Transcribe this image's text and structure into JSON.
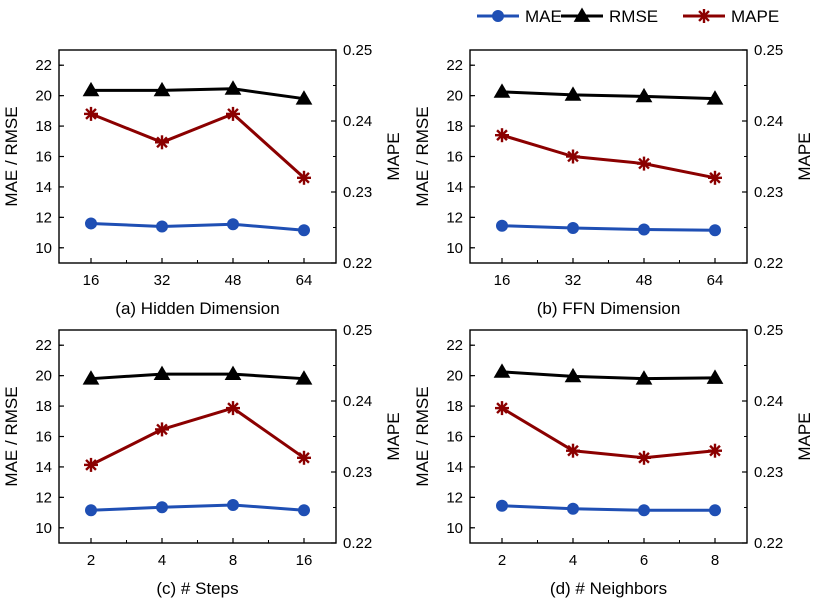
{
  "legend": [
    {
      "name": "MAE",
      "color": "#1f4fb4",
      "marker": "circle"
    },
    {
      "name": "RMSE",
      "color": "#000000",
      "marker": "triangle"
    },
    {
      "name": "MAPE",
      "color": "#8b0000",
      "marker": "asterisk"
    }
  ],
  "chart_data": [
    {
      "type": "line",
      "caption": "(a) Hidden Dimension",
      "categories": [
        "16",
        "32",
        "48",
        "64"
      ],
      "ylabel_left": "MAE / RMSE",
      "ylabel_right": "MAPE",
      "ylim_left": [
        9,
        23
      ],
      "yticks_left": [
        "10",
        "12",
        "14",
        "16",
        "18",
        "20",
        "22"
      ],
      "ylim_right": [
        0.22,
        0.25
      ],
      "yticks_right": [
        "0.22",
        "0.23",
        "0.24",
        "0.25"
      ],
      "series": [
        {
          "name": "MAE",
          "axis": "left",
          "values": [
            11.6,
            11.4,
            11.55,
            11.15
          ]
        },
        {
          "name": "RMSE",
          "axis": "left",
          "values": [
            20.35,
            20.35,
            20.45,
            19.8
          ]
        },
        {
          "name": "MAPE",
          "axis": "right",
          "values": [
            0.241,
            0.237,
            0.241,
            0.232
          ]
        }
      ]
    },
    {
      "type": "line",
      "caption": "(b) FFN Dimension",
      "categories": [
        "16",
        "32",
        "48",
        "64"
      ],
      "ylabel_left": "MAE / RMSE",
      "ylabel_right": "MAPE",
      "ylim_left": [
        9,
        23
      ],
      "yticks_left": [
        "10",
        "12",
        "14",
        "16",
        "18",
        "20",
        "22"
      ],
      "ylim_right": [
        0.22,
        0.25
      ],
      "yticks_right": [
        "0.22",
        "0.23",
        "0.24",
        "0.25"
      ],
      "series": [
        {
          "name": "MAE",
          "axis": "left",
          "values": [
            11.45,
            11.3,
            11.2,
            11.15
          ]
        },
        {
          "name": "RMSE",
          "axis": "left",
          "values": [
            20.25,
            20.05,
            19.95,
            19.8
          ]
        },
        {
          "name": "MAPE",
          "axis": "right",
          "values": [
            0.238,
            0.235,
            0.234,
            0.232
          ]
        }
      ]
    },
    {
      "type": "line",
      "caption": "(c) # Steps",
      "categories": [
        "2",
        "4",
        "8",
        "16"
      ],
      "ylabel_left": "MAE / RMSE",
      "ylabel_right": "MAPE",
      "ylim_left": [
        9,
        23
      ],
      "yticks_left": [
        "10",
        "12",
        "14",
        "16",
        "18",
        "20",
        "22"
      ],
      "ylim_right": [
        0.22,
        0.25
      ],
      "yticks_right": [
        "0.22",
        "0.23",
        "0.24",
        "0.25"
      ],
      "series": [
        {
          "name": "MAE",
          "axis": "left",
          "values": [
            11.15,
            11.35,
            11.5,
            11.15
          ]
        },
        {
          "name": "RMSE",
          "axis": "left",
          "values": [
            19.8,
            20.1,
            20.1,
            19.8
          ]
        },
        {
          "name": "MAPE",
          "axis": "right",
          "values": [
            0.231,
            0.236,
            0.239,
            0.232
          ]
        }
      ]
    },
    {
      "type": "line",
      "caption": "(d) # Neighbors",
      "categories": [
        "2",
        "4",
        "6",
        "8"
      ],
      "ylabel_left": "MAE / RMSE",
      "ylabel_right": "MAPE",
      "ylim_left": [
        9,
        23
      ],
      "yticks_left": [
        "10",
        "12",
        "14",
        "16",
        "18",
        "20",
        "22"
      ],
      "ylim_right": [
        0.22,
        0.25
      ],
      "yticks_right": [
        "0.22",
        "0.23",
        "0.24",
        "0.25"
      ],
      "series": [
        {
          "name": "MAE",
          "axis": "left",
          "values": [
            11.45,
            11.25,
            11.15,
            11.15
          ]
        },
        {
          "name": "RMSE",
          "axis": "left",
          "values": [
            20.25,
            19.95,
            19.8,
            19.85
          ]
        },
        {
          "name": "MAPE",
          "axis": "right",
          "values": [
            0.239,
            0.233,
            0.232,
            0.233
          ]
        }
      ]
    }
  ]
}
